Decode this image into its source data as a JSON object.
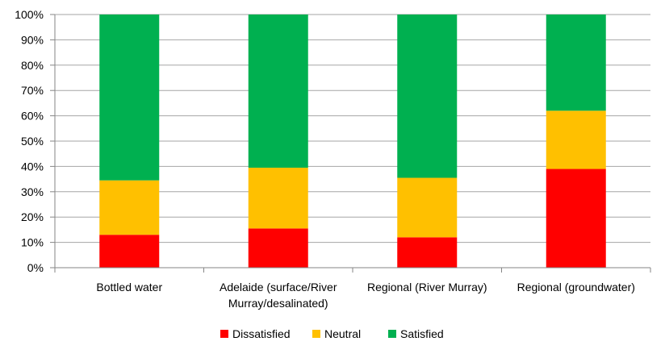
{
  "chart_data": {
    "type": "bar",
    "stacked": "percent",
    "categories": [
      [
        "Bottled water"
      ],
      [
        "Adelaide (surface/River",
        "Murray/desalinated)"
      ],
      [
        "Regional (River Murray)"
      ],
      [
        "Regional (groundwater)"
      ]
    ],
    "series": [
      {
        "name": "Dissatisfied",
        "color": "#ff0000",
        "values": [
          13,
          15.5,
          12,
          39
        ]
      },
      {
        "name": "Neutral",
        "color": "#ffc000",
        "values": [
          21.5,
          24,
          23.5,
          23
        ]
      },
      {
        "name": "Satisfied",
        "color": "#00b050",
        "values": [
          65.5,
          60.5,
          64.5,
          38
        ]
      }
    ],
    "ylim": [
      0,
      100
    ],
    "yticks": [
      "0%",
      "10%",
      "20%",
      "30%",
      "40%",
      "50%",
      "60%",
      "70%",
      "80%",
      "90%",
      "100%"
    ],
    "grid": true,
    "legend": "bottom",
    "title": "",
    "xlabel": "",
    "ylabel": ""
  }
}
